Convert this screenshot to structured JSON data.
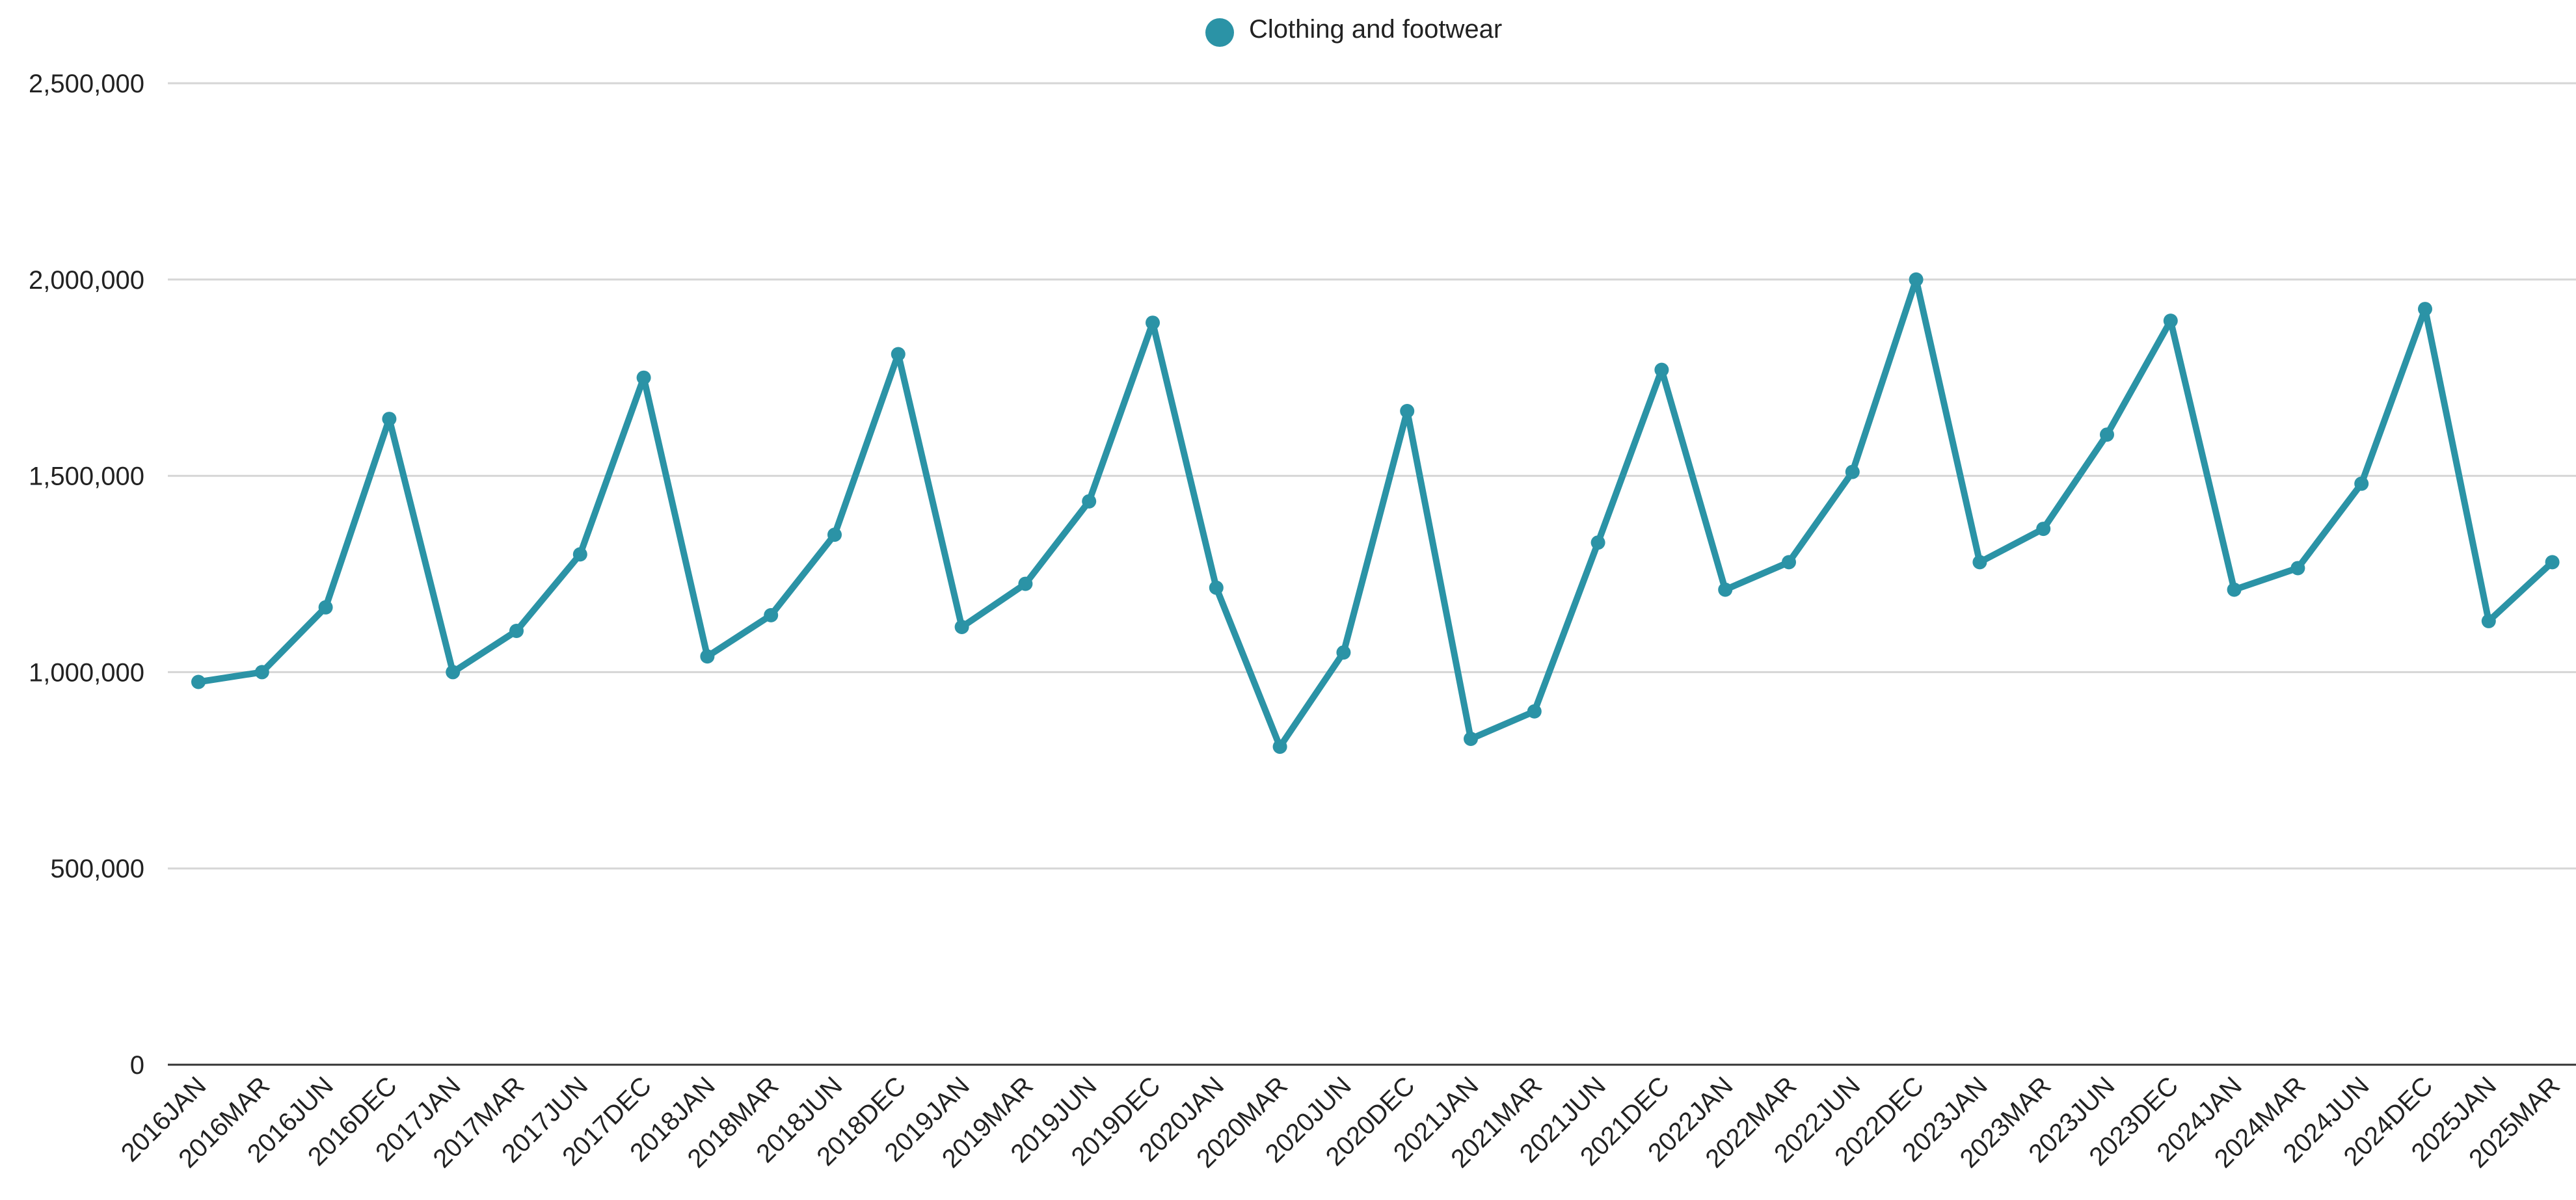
{
  "chart_data": {
    "type": "line",
    "title": "",
    "xlabel": "",
    "ylabel": "",
    "ylim": [
      0,
      2500000
    ],
    "y_ticks": [
      {
        "value": 0,
        "label": "0"
      },
      {
        "value": 500000,
        "label": "500,000"
      },
      {
        "value": 1000000,
        "label": "1,000,000"
      },
      {
        "value": 1500000,
        "label": "1,500,000"
      },
      {
        "value": 2000000,
        "label": "2,000,000"
      },
      {
        "value": 2500000,
        "label": "2,500,000"
      }
    ],
    "grid": true,
    "legend_position": "top-center",
    "categories": [
      "2016JAN",
      "2016MAR",
      "2016JUN",
      "2016DEC",
      "2017JAN",
      "2017MAR",
      "2017JUN",
      "2017DEC",
      "2018JAN",
      "2018MAR",
      "2018JUN",
      "2018DEC",
      "2019JAN",
      "2019MAR",
      "2019JUN",
      "2019DEC",
      "2020JAN",
      "2020MAR",
      "2020JUN",
      "2020DEC",
      "2021JAN",
      "2021MAR",
      "2021JUN",
      "2021DEC",
      "2022JAN",
      "2022MAR",
      "2022JUN",
      "2022DEC",
      "2023JAN",
      "2023MAR",
      "2023JUN",
      "2023DEC",
      "2024JAN",
      "2024MAR",
      "2024JUN",
      "2024DEC",
      "2025JAN",
      "2025MAR"
    ],
    "series": [
      {
        "name": "Clothing and footwear",
        "color": "#2b93a6",
        "values": [
          975000,
          1000000,
          1165000,
          1645000,
          1000000,
          1105000,
          1300000,
          1750000,
          1040000,
          1145000,
          1350000,
          1810000,
          1115000,
          1225000,
          1435000,
          1890000,
          1215000,
          810000,
          1050000,
          1665000,
          830000,
          900000,
          1330000,
          1770000,
          1210000,
          1280000,
          1510000,
          2000000,
          1280000,
          1365000,
          1605000,
          1895000,
          1210000,
          1265000,
          1480000,
          1925000,
          1130000,
          1280000
        ]
      }
    ]
  }
}
